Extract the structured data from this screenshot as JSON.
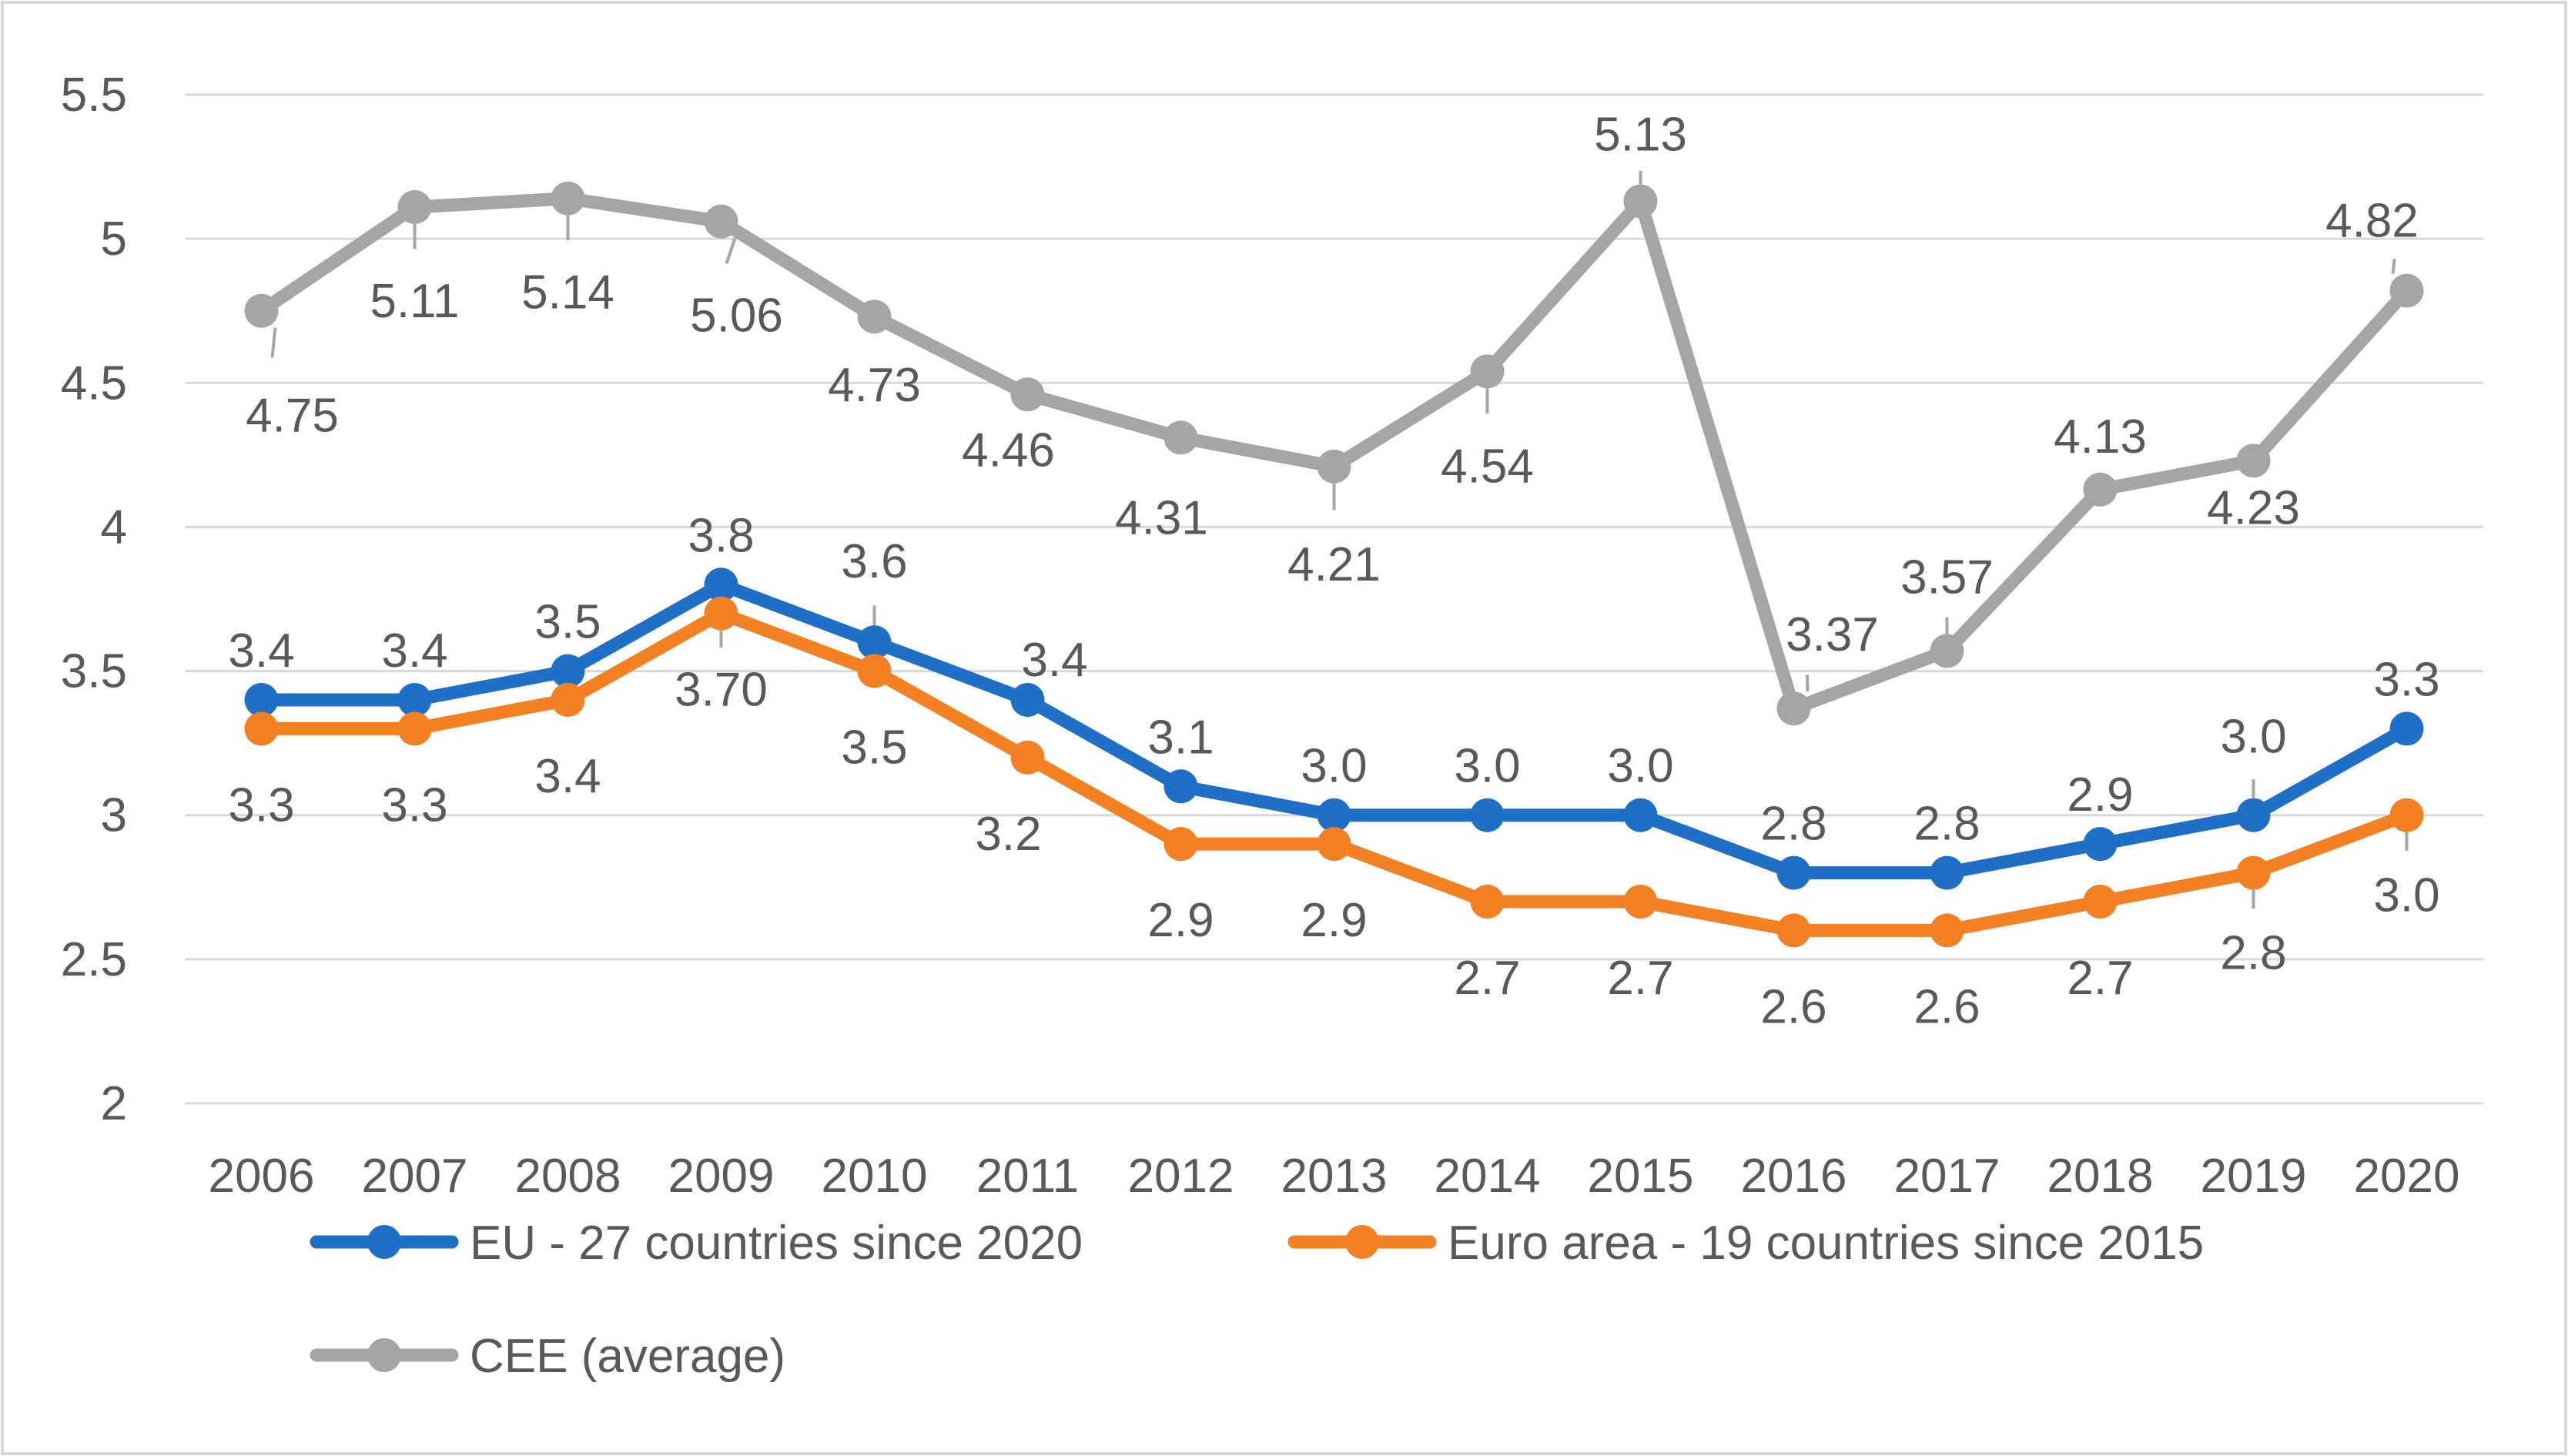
{
  "chart_data": {
    "type": "line",
    "title": "",
    "xlabel": "",
    "ylabel": "",
    "ylim": [
      2,
      5.5
    ],
    "yticks": [
      "2",
      "2.5",
      "3",
      "3.5",
      "4",
      "4.5",
      "5",
      "5.5"
    ],
    "grid": true,
    "legend_position": "bottom",
    "categories": [
      "2006",
      "2007",
      "2008",
      "2009",
      "2010",
      "2011",
      "2012",
      "2013",
      "2014",
      "2015",
      "2016",
      "2017",
      "2018",
      "2019",
      "2020"
    ],
    "series": [
      {
        "name": "EU  - 27 countries since 2020",
        "color": "#1f6fc6",
        "values": [
          3.4,
          3.4,
          3.5,
          3.8,
          3.6,
          3.4,
          3.1,
          3.0,
          3.0,
          3.0,
          2.8,
          2.8,
          2.9,
          3.0,
          3.3
        ],
        "labels": [
          "3.4",
          "3.4",
          "3.5",
          "3.8",
          "3.6",
          "3.4",
          "3.1",
          "3.0",
          "3.0",
          "3.0",
          "2.8",
          "2.8",
          "2.9",
          "3.0",
          "3.3"
        ]
      },
      {
        "name": "Euro area - 19 countries since 2015",
        "color": "#f48024",
        "values": [
          3.3,
          3.3,
          3.4,
          3.7,
          3.5,
          3.2,
          2.9,
          2.9,
          2.7,
          2.7,
          2.6,
          2.6,
          2.7,
          2.8,
          3.0
        ],
        "labels": [
          "3.3",
          "3.3",
          "3.4",
          "3.70",
          "3.5",
          "3.2",
          "2.9",
          "2.9",
          "2.7",
          "2.7",
          "2.6",
          "2.6",
          "2.7",
          "2.8",
          "3.0"
        ]
      },
      {
        "name": "CEE (average)",
        "color": "#a5a5a5",
        "values": [
          4.75,
          5.11,
          5.14,
          5.06,
          4.73,
          4.46,
          4.31,
          4.21,
          4.54,
          5.13,
          3.37,
          3.57,
          4.13,
          4.23,
          4.82
        ],
        "labels": [
          "4.75",
          "5.11",
          "5.14",
          "5.06",
          "4.73",
          "4.46",
          "4.31",
          "4.21",
          "4.54",
          "5.13",
          "3.37",
          "3.57",
          "4.13",
          "4.23",
          "4.82"
        ]
      }
    ]
  }
}
